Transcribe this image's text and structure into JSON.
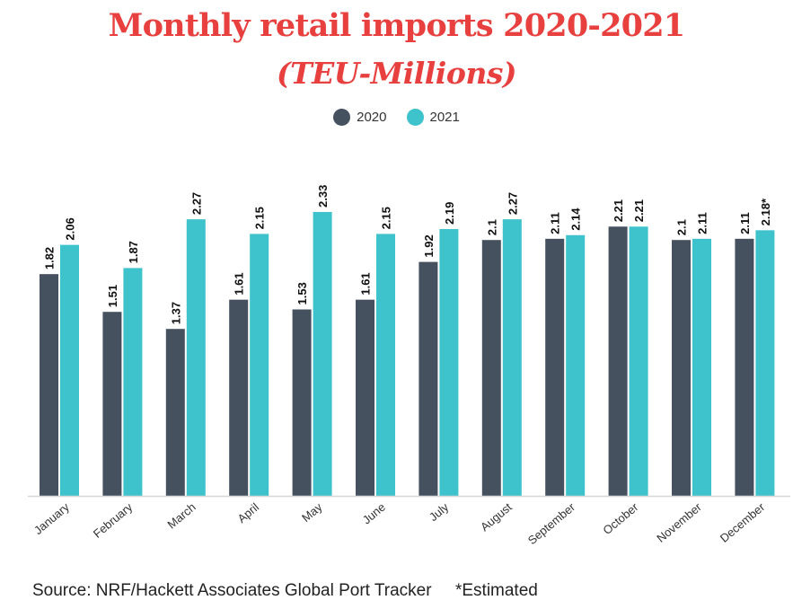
{
  "chart_data": {
    "type": "bar",
    "title": "Monthly retail imports 2020-2021",
    "subtitle": "(TEU-Millions)",
    "categories": [
      "January",
      "February",
      "March",
      "April",
      "May",
      "June",
      "July",
      "August",
      "September",
      "October",
      "November",
      "December"
    ],
    "series": [
      {
        "name": "2020",
        "color": "#465160",
        "values": [
          1.82,
          1.51,
          1.37,
          1.61,
          1.53,
          1.61,
          1.92,
          2.1,
          2.11,
          2.21,
          2.1,
          2.11
        ],
        "labels": [
          "1.82",
          "1.51",
          "1.37",
          "1.61",
          "1.53",
          "1.61",
          "1.92",
          "2.1",
          "2.11",
          "2.21",
          "2.1",
          "2.11"
        ]
      },
      {
        "name": "2021",
        "color": "#3ec2cc",
        "values": [
          2.06,
          1.87,
          2.27,
          2.15,
          2.33,
          2.15,
          2.19,
          2.27,
          2.14,
          2.21,
          2.11,
          2.18
        ],
        "labels": [
          "2.06",
          "1.87",
          "2.27",
          "2.15",
          "2.33",
          "2.15",
          "2.19",
          "2.27",
          "2.14",
          "2.21",
          "2.11",
          "2.18*"
        ]
      }
    ],
    "ylim": [
      0,
      2.33
    ],
    "grid": false,
    "legend_position": "top-center"
  },
  "footer": {
    "source": "Source: NRF/Hackett Associates Global Port Tracker",
    "note": "*Estimated"
  }
}
